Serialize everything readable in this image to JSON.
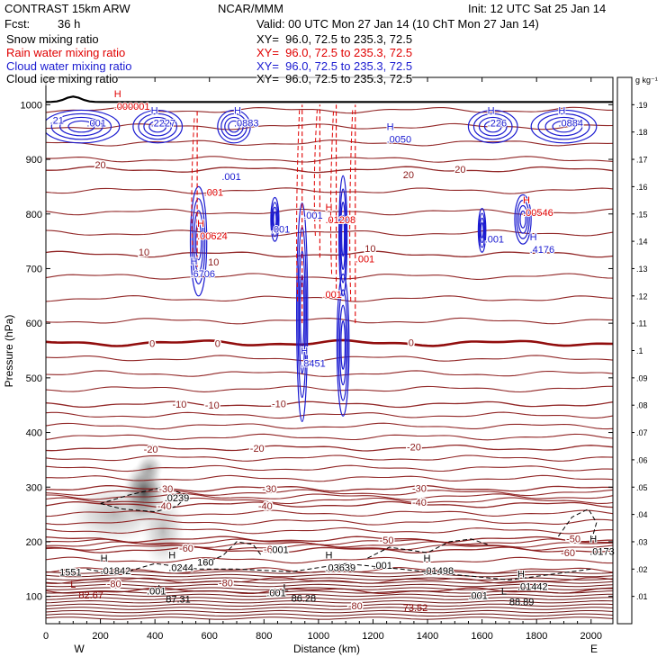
{
  "header": {
    "model": "CONTRAST 15km ARW",
    "org": "NCAR/MMM",
    "init": "Init: 12 UTC Sat 25 Jan 14",
    "fcst_label": "Fcst:",
    "fcst_value": "36 h",
    "valid": "Valid: 00 UTC Mon 27 Jan 14 (10 ChT Mon 27 Jan 14)",
    "fields": [
      {
        "name": "Snow mixing ratio",
        "xy": "XY=  96.0, 72.5 to 235.3, 72.5",
        "color": "#000000"
      },
      {
        "name": "Rain water mixing ratio",
        "xy": "XY=  96.0, 72.5 to 235.3, 72.5",
        "color": "#e00000"
      },
      {
        "name": "Cloud water mixing ratio",
        "xy": "XY=  96.0, 72.5 to 235.3, 72.5",
        "color": "#1a1ad0"
      },
      {
        "name": "Cloud ice mixing ratio",
        "xy": "XY=  96.0, 72.5 to 235.3, 72.5",
        "color": "#000000"
      }
    ]
  },
  "chart_data": {
    "type": "contour",
    "xlabel": "Distance (km)",
    "ylabel": "Pressure (hPa)",
    "xlim": [
      0,
      2080
    ],
    "ylim": [
      1050,
      50
    ],
    "xticks": [
      0,
      200,
      400,
      600,
      800,
      1000,
      1200,
      1400,
      1600,
      1800,
      2000
    ],
    "yticks": [
      100,
      200,
      300,
      400,
      500,
      600,
      700,
      800,
      900,
      1000
    ],
    "x_end_labels": {
      "left": "W",
      "right": "E"
    },
    "colorbar": {
      "unit": "g kg⁻¹",
      "ticks": [
        ".01",
        ".02",
        ".03",
        ".04",
        ".05",
        ".06",
        ".07",
        ".08",
        ".09",
        ".1",
        ".11",
        ".12",
        ".13",
        ".14",
        ".15",
        ".16",
        ".17",
        ".18",
        ".19"
      ]
    },
    "temperature_isotherms_C": [
      -80,
      -70,
      -60,
      -50,
      -40,
      -30,
      -20,
      -10,
      0,
      10,
      20
    ],
    "temperature_contour_labels": [
      {
        "t": "-80",
        "x": 250,
        "p": 123
      },
      {
        "t": "-80",
        "x": 660,
        "p": 125
      },
      {
        "t": "-80",
        "x": 1135,
        "p": 83
      },
      {
        "t": "-60",
        "x": 515,
        "p": 188
      },
      {
        "t": "-60",
        "x": 825,
        "p": 187
      },
      {
        "t": "-60",
        "x": 1915,
        "p": 180
      },
      {
        "t": "-50",
        "x": 1250,
        "p": 203
      },
      {
        "t": "-50",
        "x": 1935,
        "p": 206
      },
      {
        "t": "-40",
        "x": 435,
        "p": 266
      },
      {
        "t": "-40",
        "x": 805,
        "p": 266
      },
      {
        "t": "-40",
        "x": 1370,
        "p": 272
      },
      {
        "t": "-30",
        "x": 440,
        "p": 297
      },
      {
        "t": "-30",
        "x": 820,
        "p": 297
      },
      {
        "t": "-30",
        "x": 1370,
        "p": 298
      },
      {
        "t": "-20",
        "x": 385,
        "p": 370
      },
      {
        "t": "-20",
        "x": 775,
        "p": 371
      },
      {
        "t": "-20",
        "x": 1350,
        "p": 374
      },
      {
        "t": "-10",
        "x": 490,
        "p": 452
      },
      {
        "t": "-10",
        "x": 610,
        "p": 450
      },
      {
        "t": "-10",
        "x": 855,
        "p": 453
      },
      {
        "t": "0",
        "x": 390,
        "p": 563
      },
      {
        "t": "0",
        "x": 630,
        "p": 563
      },
      {
        "t": "0",
        "x": 1340,
        "p": 565
      },
      {
        "t": "10",
        "x": 360,
        "p": 730
      },
      {
        "t": "10",
        "x": 615,
        "p": 712
      },
      {
        "t": "10",
        "x": 1190,
        "p": 737
      },
      {
        "t": "20",
        "x": 200,
        "p": 890
      },
      {
        "t": "20",
        "x": 1330,
        "p": 872
      },
      {
        "t": "20",
        "x": 1520,
        "p": 882
      }
    ],
    "min_max_marks": [
      {
        "mark": "L",
        "value": "82.67",
        "x": 120,
        "p": 103,
        "color": "#8b0000"
      },
      {
        "mark": "L",
        "value": "87.31",
        "x": 440,
        "p": 95,
        "color": "#000000"
      },
      {
        "mark": "L",
        "value": "86.28",
        "x": 900,
        "p": 97,
        "color": "#000000"
      },
      {
        "mark": "",
        "value": "73.52",
        "x": 1310,
        "p": 80,
        "color": "#8b0000"
      },
      {
        "mark": "L",
        "value": "88.89",
        "x": 1700,
        "p": 90,
        "color": "#000000"
      }
    ],
    "series": [
      {
        "name": "Snow mixing ratio",
        "color": "#000000",
        "style": "shaded",
        "labels": [
          {
            "mark": "",
            "value": ".001",
            "x": 370,
            "p": 110
          },
          {
            "mark": "",
            "value": ".001",
            "x": 810,
            "p": 107
          },
          {
            "mark": "H",
            "value": ".0244",
            "x": 450,
            "p": 153
          },
          {
            "mark": "",
            "value": ".001",
            "x": 820,
            "p": 186
          },
          {
            "mark": "",
            "value": ".0239",
            "x": 435,
            "p": 281
          },
          {
            "mark": "",
            "value": "160",
            "x": 555,
            "p": 163
          }
        ]
      },
      {
        "name": "Rain water mixing ratio",
        "color": "#e00000",
        "style": "dashed",
        "labels": [
          {
            "mark": "H",
            "value": ".00624",
            "x": 555,
            "p": 760
          },
          {
            "mark": "",
            "value": ".001",
            "x": 580,
            "p": 840
          },
          {
            "mark": "",
            "value": ".001",
            "x": 1015,
            "p": 653
          },
          {
            "mark": "H",
            "value": ".01208",
            "x": 1025,
            "p": 790
          },
          {
            "mark": "",
            "value": ".001",
            "x": 1135,
            "p": 718
          },
          {
            "mark": "H",
            "value": ".00546",
            "x": 1750,
            "p": 803
          },
          {
            "mark": "H",
            "value": ".000001",
            "x": 250,
            "p": 997
          }
        ]
      },
      {
        "name": "Cloud water mixing ratio",
        "color": "#1a1ad0",
        "style": "solid",
        "labels": [
          {
            "mark": "H",
            "value": ".6706",
            "x": 530,
            "p": 691
          },
          {
            "mark": "",
            "value": ".001",
            "x": 825,
            "p": 772
          },
          {
            "mark": "",
            "value": ".001",
            "x": 945,
            "p": 798
          },
          {
            "mark": "",
            "value": ".001",
            "x": 645,
            "p": 869
          },
          {
            "mark": "H",
            "value": ".8451",
            "x": 935,
            "p": 527
          },
          {
            "mark": "",
            "value": ".001",
            "x": 1610,
            "p": 754
          },
          {
            "mark": "H",
            "value": ".4176",
            "x": 1775,
            "p": 735
          },
          {
            "mark": "",
            "value": ".001",
            "x": 150,
            "p": 967
          },
          {
            "mark": "",
            "value": ".21",
            "x": 15,
            "p": 972
          },
          {
            "mark": "H",
            "value": ".2227",
            "x": 385,
            "p": 967
          },
          {
            "mark": "H",
            "value": ".0883",
            "x": 690,
            "p": 967
          },
          {
            "mark": "H",
            "value": ".0050",
            "x": 1250,
            "p": 937
          },
          {
            "mark": "H",
            "value": ".226",
            "x": 1620,
            "p": 967
          },
          {
            "mark": "H",
            "value": ".0884",
            "x": 1880,
            "p": 967
          }
        ]
      },
      {
        "name": "Cloud ice mixing ratio",
        "color": "#000000",
        "style": "dashed",
        "labels": [
          {
            "mark": "H",
            "value": ".01842",
            "x": 200,
            "p": 147
          },
          {
            "mark": "",
            "value": "1551",
            "x": 50,
            "p": 145
          },
          {
            "mark": "H",
            "value": ".03639",
            "x": 1025,
            "p": 153
          },
          {
            "mark": "",
            "value": ".001",
            "x": 1200,
            "p": 157
          },
          {
            "mark": "H",
            "value": ".01498",
            "x": 1385,
            "p": 147
          },
          {
            "mark": "H",
            "value": ".01442",
            "x": 1730,
            "p": 118
          },
          {
            "mark": "H",
            "value": ".0173",
            "x": 1995,
            "p": 183
          },
          {
            "mark": "",
            "value": ".001",
            "x": 1550,
            "p": 102
          }
        ]
      }
    ],
    "snow_blobs": [
      {
        "x": 360,
        "p": 290,
        "rx": 75,
        "rp": 55,
        "a": 0.9
      },
      {
        "x": 250,
        "p": 250,
        "rx": 170,
        "rp": 55,
        "a": 0.35
      },
      {
        "x": 430,
        "p": 220,
        "rx": 80,
        "rp": 70,
        "a": 0.35
      },
      {
        "x": 380,
        "p": 335,
        "rx": 50,
        "rp": 25,
        "a": 0.45
      }
    ],
    "cloud_cores": [
      {
        "x": 940,
        "p": 620,
        "rx": 20,
        "rp": 200
      },
      {
        "x": 1090,
        "p": 560,
        "rx": 22,
        "rp": 130
      },
      {
        "x": 560,
        "p": 750,
        "rx": 30,
        "rp": 100
      },
      {
        "x": 1090,
        "p": 760,
        "rx": 15,
        "rp": 110
      },
      {
        "x": 1750,
        "p": 790,
        "rx": 30,
        "rp": 45
      },
      {
        "x": 1600,
        "p": 770,
        "rx": 14,
        "rp": 40
      },
      {
        "x": 840,
        "p": 790,
        "rx": 15,
        "rp": 40
      },
      {
        "x": 130,
        "p": 960,
        "rx": 140,
        "rp": 30
      },
      {
        "x": 410,
        "p": 960,
        "rx": 90,
        "rp": 30
      },
      {
        "x": 690,
        "p": 960,
        "rx": 60,
        "rp": 30
      },
      {
        "x": 1640,
        "p": 960,
        "rx": 90,
        "rp": 30
      },
      {
        "x": 1900,
        "p": 960,
        "rx": 120,
        "rp": 30
      }
    ],
    "rain_shafts": [
      {
        "x": 555,
        "p1": 690,
        "p2": 990
      },
      {
        "x": 940,
        "p1": 600,
        "p2": 1000
      },
      {
        "x": 1005,
        "p1": 720,
        "p2": 1000
      },
      {
        "x": 1065,
        "p1": 650,
        "p2": 1000
      },
      {
        "x": 1135,
        "p1": 600,
        "p2": 1000
      }
    ]
  }
}
